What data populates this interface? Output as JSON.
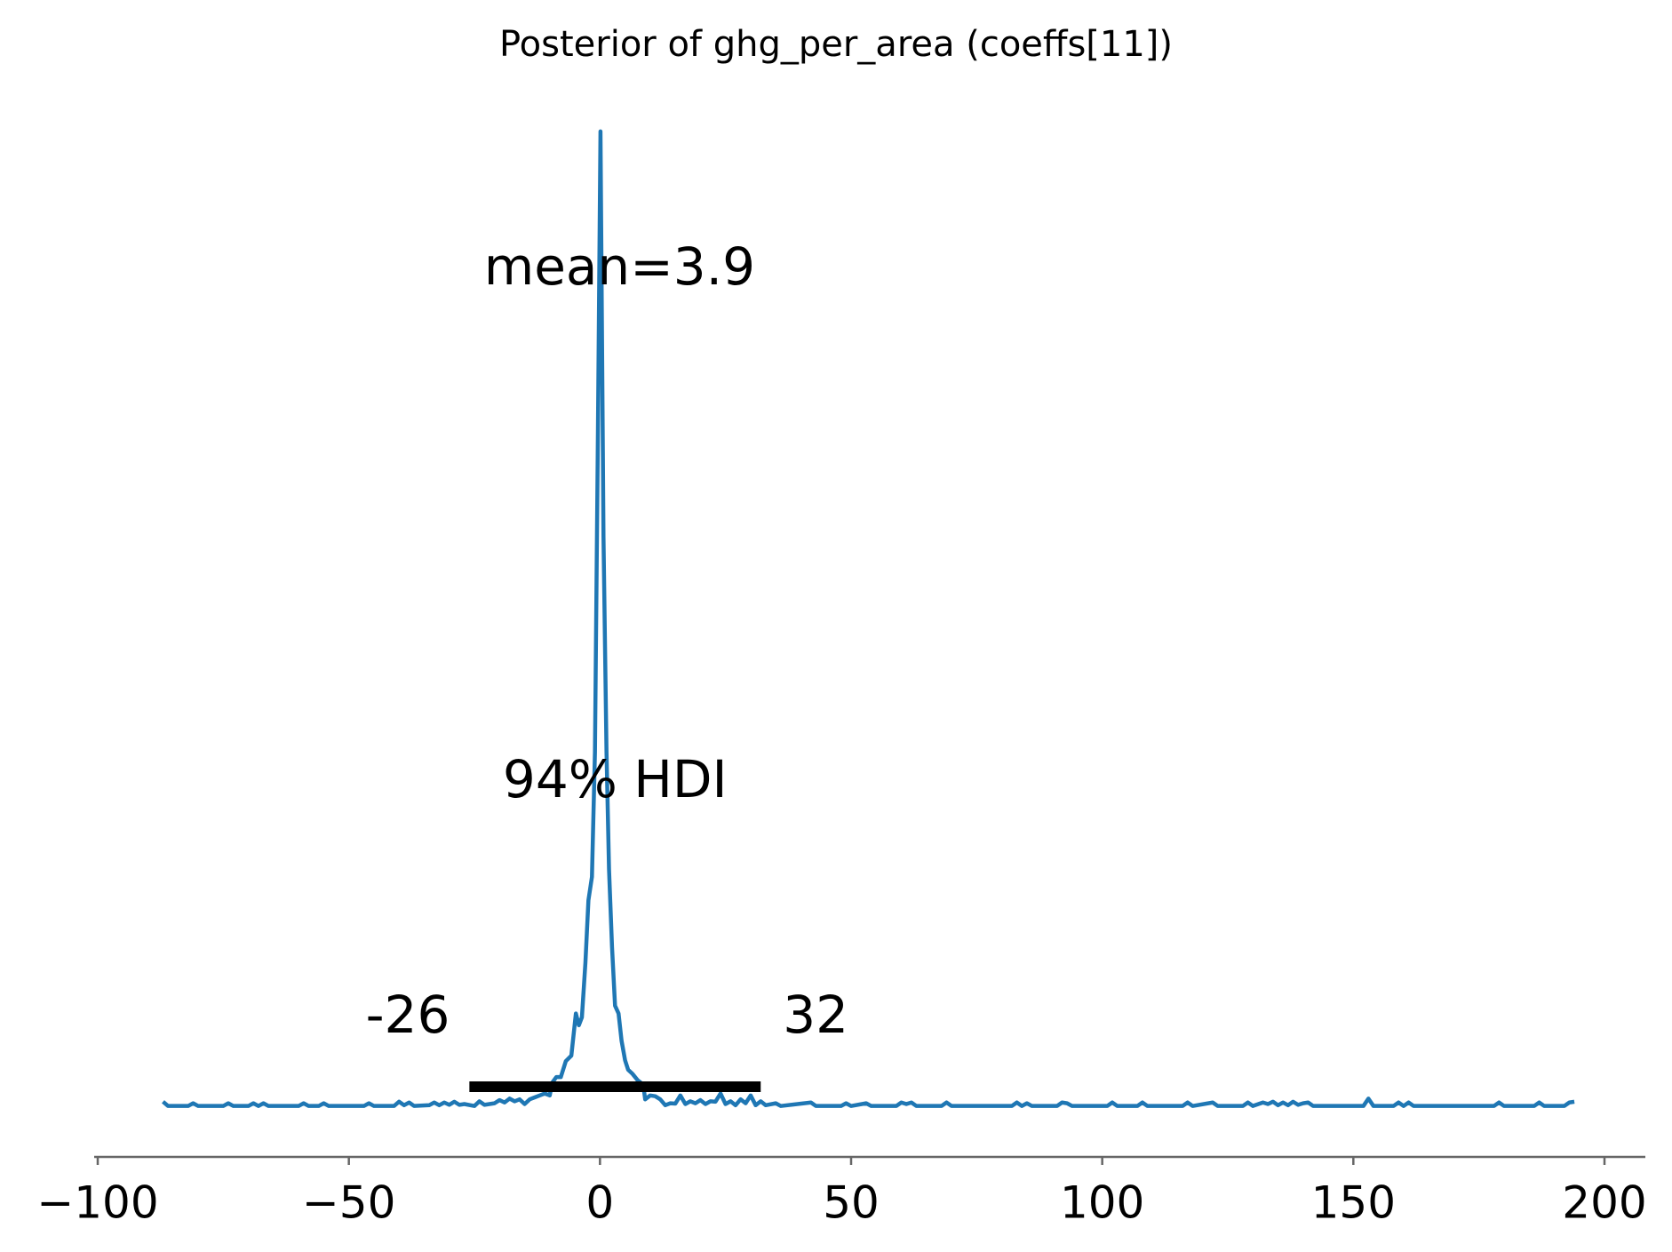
{
  "chart_data": {
    "type": "line",
    "title": "Posterior of ghg_per_area (coeffs[11])",
    "x": [
      -87,
      -86,
      -82,
      -81,
      -80,
      -75,
      -74,
      -73,
      -70,
      -69,
      -68,
      -67,
      -66,
      -60,
      -59,
      -58,
      -56,
      -55,
      -54,
      -47,
      -46,
      -45,
      -41,
      -40,
      -39,
      -38,
      -37,
      -34,
      -33,
      -32,
      -31,
      -30,
      -29,
      -28,
      -27,
      -25,
      -24,
      -23,
      -21,
      -20,
      -19,
      -18,
      -17,
      -16,
      -15,
      -14,
      -13,
      -12,
      -11,
      -10,
      -9.5,
      -8.7,
      -7.8,
      -6.8,
      -5.7,
      -4.8,
      -4.2,
      -3.6,
      -2.9,
      -2.3,
      -1.6,
      -1.0,
      -0.4,
      0.1,
      0.7,
      1.3,
      1.8,
      2.4,
      3.0,
      3.7,
      4.3,
      5.0,
      5.6,
      6.5,
      7.5,
      8.6,
      9,
      10,
      11,
      12,
      13,
      14,
      15,
      16,
      17,
      18,
      19,
      20,
      21,
      22,
      23,
      24,
      25,
      26,
      27,
      28,
      29,
      30,
      31,
      32,
      33,
      35,
      36,
      42,
      43,
      48,
      49,
      50,
      53,
      54,
      59,
      60,
      61,
      62,
      63,
      68,
      69,
      70,
      82,
      83,
      84,
      85,
      86,
      91,
      92,
      93,
      94,
      101,
      102,
      103,
      107,
      108,
      109,
      116,
      117,
      118,
      122,
      123,
      128,
      129,
      130,
      132,
      133,
      134,
      135,
      136,
      137,
      138,
      139,
      140,
      141,
      142,
      152,
      153,
      154,
      158,
      159,
      160,
      161,
      162,
      178,
      179,
      180,
      186,
      187,
      188,
      192,
      193,
      194
    ],
    "series": [
      {
        "color": "#1f77b4",
        "values": [
          0.0014,
          0.0003,
          0.0003,
          0.001,
          0.0003,
          0.0003,
          0.001,
          0.0003,
          0.0003,
          0.001,
          0.0003,
          0.001,
          0.0003,
          0.0003,
          0.001,
          0.0003,
          0.0003,
          0.001,
          0.0003,
          0.0003,
          0.001,
          0.0003,
          0.0003,
          0.0014,
          0.0005,
          0.0012,
          0.0003,
          0.0005,
          0.0012,
          0.0005,
          0.0012,
          0.0006,
          0.0014,
          0.0006,
          0.0008,
          0.0003,
          0.0015,
          0.0006,
          0.001,
          0.0018,
          0.0012,
          0.0022,
          0.0015,
          0.002,
          0.0008,
          0.002,
          0.0025,
          0.003,
          0.0035,
          0.003,
          0.0063,
          0.0077,
          0.0077,
          0.0118,
          0.0132,
          0.024,
          0.021,
          0.023,
          0.037,
          0.053,
          0.059,
          0.091,
          0.174,
          0.25,
          0.146,
          0.091,
          0.061,
          0.041,
          0.026,
          0.024,
          0.017,
          0.012,
          0.0096,
          0.0085,
          0.0069,
          0.0058,
          0.002,
          0.003,
          0.0028,
          0.002,
          0.0005,
          0.001,
          0.0009,
          0.003,
          0.0008,
          0.0015,
          0.001,
          0.0018,
          0.0008,
          0.0015,
          0.0014,
          0.0035,
          0.0008,
          0.0015,
          0.0005,
          0.002,
          0.001,
          0.003,
          0.0005,
          0.0015,
          0.0005,
          0.001,
          0.0003,
          0.0012,
          0.0003,
          0.0003,
          0.001,
          0.0003,
          0.001,
          0.0003,
          0.0003,
          0.0012,
          0.0008,
          0.0012,
          0.0003,
          0.0003,
          0.0012,
          0.0003,
          0.0003,
          0.0012,
          0.0003,
          0.001,
          0.0003,
          0.0003,
          0.0012,
          0.001,
          0.0003,
          0.0003,
          0.0012,
          0.0003,
          0.0003,
          0.0012,
          0.0003,
          0.0003,
          0.0012,
          0.0003,
          0.0012,
          0.0003,
          0.0003,
          0.0012,
          0.0003,
          0.0012,
          0.0008,
          0.0014,
          0.0005,
          0.0012,
          0.0005,
          0.0014,
          0.0006,
          0.001,
          0.0012,
          0.0003,
          0.0003,
          0.0022,
          0.0003,
          0.0003,
          0.0012,
          0.0003,
          0.0012,
          0.0003,
          0.0003,
          0.0012,
          0.0003,
          0.0003,
          0.0012,
          0.0003,
          0.0003,
          0.0012,
          0.0014
        ]
      }
    ],
    "mean_text": "mean=3.9",
    "mean": 3.9,
    "hdi": {
      "label": "94% HDI",
      "low": -26,
      "high": 32
    },
    "xlim": [
      -100,
      200
    ],
    "ylim": [
      0,
      0.27
    ],
    "xticks": [
      {
        "value": -100,
        "label": "−100"
      },
      {
        "value": -50,
        "label": "−50"
      },
      0,
      50,
      100,
      150,
      200
    ]
  }
}
